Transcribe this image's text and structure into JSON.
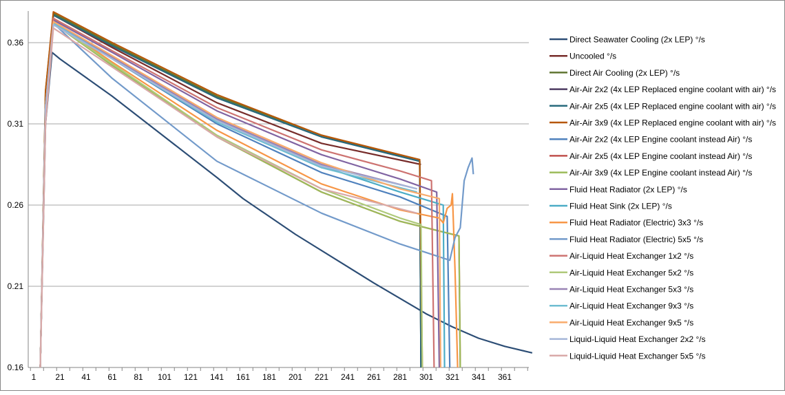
{
  "chart_data": {
    "type": "line",
    "title": "",
    "xlabel": "",
    "ylabel": "",
    "xlim": [
      1,
      382
    ],
    "ylim": [
      0.16,
      0.38
    ],
    "grid": true,
    "legend_position": "right",
    "x_ticks": [
      "1",
      "21",
      "41",
      "61",
      "81",
      "101",
      "121",
      "141",
      "161",
      "181",
      "201",
      "221",
      "241",
      "261",
      "281",
      "301",
      "321",
      "341",
      "361"
    ],
    "y_ticks": [
      "0.16",
      "0.21",
      "0.26",
      "0.31",
      "0.36"
    ],
    "series": [
      {
        "name": "Direct Seawater Cooling (2x LEP) °/s",
        "color": "#2C4D75",
        "points": [
          [
            6,
            0.16
          ],
          [
            10,
            0.31
          ],
          [
            15,
            0.354
          ],
          [
            21,
            0.35
          ],
          [
            61,
            0.327
          ],
          [
            101,
            0.302
          ],
          [
            141,
            0.277
          ],
          [
            161,
            0.264
          ],
          [
            201,
            0.242
          ],
          [
            241,
            0.222
          ],
          [
            261,
            0.212
          ],
          [
            301,
            0.193
          ],
          [
            321,
            0.185
          ],
          [
            341,
            0.178
          ],
          [
            361,
            0.173
          ],
          [
            382,
            0.169
          ]
        ]
      },
      {
        "name": "Uncooled °/s",
        "color": "#772C2A",
        "points": [
          [
            6,
            0.16
          ],
          [
            10,
            0.32
          ],
          [
            16,
            0.377
          ],
          [
            61,
            0.357
          ],
          [
            141,
            0.323
          ],
          [
            221,
            0.298
          ],
          [
            297,
            0.285
          ]
        ]
      },
      {
        "name": "Direct Air Cooling (2x LEP) °/s",
        "color": "#5F7530",
        "points": [
          [
            6,
            0.16
          ],
          [
            10,
            0.33
          ],
          [
            16,
            0.378
          ],
          [
            61,
            0.359
          ],
          [
            141,
            0.327
          ],
          [
            221,
            0.303
          ],
          [
            296,
            0.287
          ],
          [
            297,
            0.16
          ]
        ]
      },
      {
        "name": "Air-Air 2x2 (4x LEP Replaced engine coolant with air) °/s",
        "color": "#4D3B62",
        "points": [
          [
            6,
            0.16
          ],
          [
            10,
            0.32
          ],
          [
            16,
            0.377
          ],
          [
            61,
            0.358
          ],
          [
            141,
            0.326
          ],
          [
            221,
            0.302
          ],
          [
            296,
            0.287
          ],
          [
            297,
            0.16
          ]
        ]
      },
      {
        "name": "Air-Air 2x5 (4x LEP Replaced engine coolant with air) °/s",
        "color": "#276A7C",
        "points": [
          [
            6,
            0.16
          ],
          [
            10,
            0.32
          ],
          [
            16,
            0.377
          ],
          [
            61,
            0.358
          ],
          [
            141,
            0.326
          ],
          [
            221,
            0.302
          ],
          [
            296,
            0.287
          ],
          [
            297,
            0.16
          ]
        ]
      },
      {
        "name": "Air-Air 3x9 (4x LEP Replaced engine coolant with air) °/s",
        "color": "#B65708",
        "points": [
          [
            6,
            0.16
          ],
          [
            10,
            0.33
          ],
          [
            16,
            0.379
          ],
          [
            61,
            0.36
          ],
          [
            141,
            0.328
          ],
          [
            221,
            0.303
          ],
          [
            296,
            0.288
          ],
          [
            298,
            0.16
          ]
        ]
      },
      {
        "name": "Air-Air 2x2 (4x LEP Engine coolant instead Air) °/s",
        "color": "#4F81BD",
        "points": [
          [
            6,
            0.16
          ],
          [
            10,
            0.32
          ],
          [
            16,
            0.373
          ],
          [
            61,
            0.35
          ],
          [
            141,
            0.31
          ],
          [
            221,
            0.28
          ],
          [
            281,
            0.265
          ],
          [
            317,
            0.253
          ],
          [
            319,
            0.16
          ]
        ]
      },
      {
        "name": "Air-Air 2x5 (4x LEP Engine coolant instead Air) °/s",
        "color": "#C0504D",
        "points": [
          [
            6,
            0.16
          ],
          [
            10,
            0.32
          ],
          [
            16,
            0.372
          ],
          [
            61,
            0.346
          ],
          [
            141,
            0.302
          ],
          [
            221,
            0.268
          ],
          [
            281,
            0.25
          ],
          [
            326,
            0.241
          ],
          [
            327,
            0.16
          ]
        ]
      },
      {
        "name": "Air-Air 3x9 (4x LEP Engine coolant instead Air) °/s",
        "color": "#9BBB59",
        "points": [
          [
            6,
            0.16
          ],
          [
            10,
            0.32
          ],
          [
            16,
            0.372
          ],
          [
            61,
            0.346
          ],
          [
            141,
            0.302
          ],
          [
            221,
            0.268
          ],
          [
            281,
            0.25
          ],
          [
            326,
            0.241
          ],
          [
            327,
            0.16
          ]
        ]
      },
      {
        "name": "Fluid Heat Radiator (2x LEP) °/s",
        "color": "#8064A2",
        "points": [
          [
            6,
            0.16
          ],
          [
            10,
            0.32
          ],
          [
            16,
            0.374
          ],
          [
            61,
            0.354
          ],
          [
            141,
            0.318
          ],
          [
            221,
            0.291
          ],
          [
            281,
            0.276
          ],
          [
            309,
            0.268
          ],
          [
            311,
            0.16
          ]
        ]
      },
      {
        "name": "Fluid Heat Sink (2x LEP) °/s",
        "color": "#4BACC6",
        "points": [
          [
            6,
            0.16
          ],
          [
            10,
            0.32
          ],
          [
            16,
            0.373
          ],
          [
            61,
            0.351
          ],
          [
            141,
            0.313
          ],
          [
            221,
            0.284
          ],
          [
            281,
            0.268
          ],
          [
            314,
            0.26
          ],
          [
            315,
            0.16
          ]
        ]
      },
      {
        "name": "Fluid Heat Radiator (Electric) 3x3 °/s",
        "color": "#F79646",
        "points": [
          [
            6,
            0.16
          ],
          [
            10,
            0.32
          ],
          [
            16,
            0.373
          ],
          [
            61,
            0.348
          ],
          [
            141,
            0.306
          ],
          [
            221,
            0.273
          ],
          [
            281,
            0.257
          ],
          [
            311,
            0.252
          ],
          [
            314,
            0.249
          ],
          [
            317,
            0.258
          ],
          [
            320,
            0.26
          ],
          [
            321,
            0.267
          ],
          [
            323,
            0.22
          ],
          [
            325,
            0.16
          ]
        ]
      },
      {
        "name": "Fluid Heat Radiator (Electric) 5x5 °/s",
        "color": "#729ACA",
        "points": [
          [
            6,
            0.16
          ],
          [
            10,
            0.32
          ],
          [
            16,
            0.372
          ],
          [
            61,
            0.338
          ],
          [
            141,
            0.287
          ],
          [
            221,
            0.255
          ],
          [
            281,
            0.236
          ],
          [
            319,
            0.226
          ],
          [
            323,
            0.24
          ],
          [
            327,
            0.246
          ],
          [
            330,
            0.275
          ],
          [
            333,
            0.283
          ],
          [
            336,
            0.289
          ],
          [
            337,
            0.279
          ]
        ]
      },
      {
        "name": "Air-Liquid Heat Exchanger 1x2 °/s",
        "color": "#CD7371",
        "points": [
          [
            6,
            0.16
          ],
          [
            10,
            0.32
          ],
          [
            16,
            0.375
          ],
          [
            61,
            0.355
          ],
          [
            141,
            0.32
          ],
          [
            221,
            0.294
          ],
          [
            281,
            0.281
          ],
          [
            305,
            0.275
          ],
          [
            307,
            0.16
          ]
        ]
      },
      {
        "name": "Air-Liquid Heat Exchanger 5x2 °/s",
        "color": "#AFC97A",
        "points": [
          [
            6,
            0.16
          ],
          [
            10,
            0.32
          ],
          [
            16,
            0.372
          ],
          [
            61,
            0.347
          ],
          [
            141,
            0.303
          ],
          [
            221,
            0.27
          ],
          [
            281,
            0.252
          ],
          [
            297,
            0.248
          ],
          [
            298,
            0.16
          ]
        ]
      },
      {
        "name": "Air-Liquid Heat Exchanger 5x3 °/s",
        "color": "#9983B5",
        "points": [
          [
            6,
            0.16
          ],
          [
            10,
            0.32
          ],
          [
            16,
            0.372
          ],
          [
            61,
            0.351
          ],
          [
            141,
            0.313
          ],
          [
            221,
            0.285
          ],
          [
            294,
            0.27
          ]
        ]
      },
      {
        "name": "Air-Liquid Heat Exchanger 9x3 °/s",
        "color": "#6FBDD1",
        "points": [
          [
            6,
            0.16
          ],
          [
            10,
            0.32
          ],
          [
            16,
            0.372
          ],
          [
            61,
            0.35
          ],
          [
            141,
            0.311
          ],
          [
            221,
            0.283
          ],
          [
            294,
            0.268
          ]
        ]
      },
      {
        "name": "Air-Liquid Heat Exchanger 9x5 °/s",
        "color": "#F9AB6B",
        "points": [
          [
            6,
            0.16
          ],
          [
            10,
            0.32
          ],
          [
            16,
            0.373
          ],
          [
            61,
            0.352
          ],
          [
            141,
            0.314
          ],
          [
            221,
            0.286
          ],
          [
            281,
            0.27
          ],
          [
            311,
            0.264
          ],
          [
            312,
            0.16
          ]
        ]
      },
      {
        "name": "Liquid-Liquid Heat Exchanger 2x2 °/s",
        "color": "#A5B6D8",
        "points": [
          [
            6,
            0.16
          ],
          [
            10,
            0.32
          ],
          [
            16,
            0.371
          ],
          [
            61,
            0.35
          ],
          [
            141,
            0.312
          ],
          [
            221,
            0.284
          ],
          [
            294,
            0.27
          ]
        ]
      },
      {
        "name": "Liquid-Liquid Heat Exchanger 5x5 °/s",
        "color": "#D9A9A8",
        "points": [
          [
            6,
            0.16
          ],
          [
            10,
            0.31
          ],
          [
            16,
            0.369
          ],
          [
            61,
            0.345
          ],
          [
            141,
            0.302
          ],
          [
            221,
            0.27
          ],
          [
            294,
            0.255
          ]
        ]
      }
    ]
  }
}
